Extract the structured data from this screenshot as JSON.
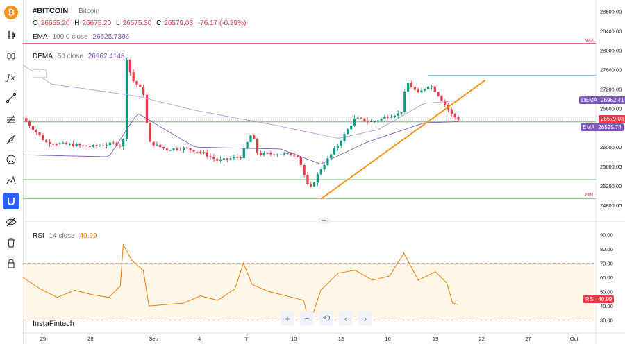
{
  "header": {
    "symbol": "#BITCOIN",
    "name": "Bitcoin",
    "o_label": "O",
    "o_value": "26655.20",
    "h_label": "H",
    "h_value": "26675.20",
    "l_label": "L",
    "l_value": "26575.30",
    "c_label": "C",
    "c_value": "26579.03",
    "change": "-76.17 (-0.29%)"
  },
  "indicators": {
    "ema": {
      "name": "EMA",
      "params": "100 0 close",
      "value": "26525.7396"
    },
    "dema": {
      "name": "DEMA",
      "params": "50 close",
      "value": "26962.4148"
    },
    "rsi": {
      "name": "RSI",
      "params": "14 close",
      "value": "40.99"
    }
  },
  "price_tags": {
    "dema": {
      "label": "DEMA",
      "value": "26962.41"
    },
    "last": {
      "value": "26579.03"
    },
    "ema": {
      "label": "EMA",
      "value": "26525.74"
    },
    "rsi": {
      "label": "RSI",
      "value": "40.99"
    }
  },
  "markers": {
    "max": "MAX",
    "min": "MIN"
  },
  "watermark": "InstaFintech",
  "icons": [
    "bitcoin-icon",
    "candles-icon",
    "bars-icon",
    "fx-icon",
    "line-tool-icon",
    "fib-icon",
    "brush-icon",
    "emoji-icon",
    "pattern-icon",
    "magnet-icon",
    "eye-icon",
    "trash-icon",
    "lock-icon"
  ],
  "nav_buttons": [
    "+",
    "−",
    "⟲",
    "‹",
    "›"
  ],
  "colors": {
    "up": "#089981",
    "down": "#f23645",
    "ema": "#7e57c2",
    "dema": "#b39ddb",
    "trend": "#f7931a",
    "rsi": "#f57c00",
    "hline_green": "#4caf50",
    "hline_red": "#f23645",
    "hline_blue": "#2196f3",
    "accent": "#2962ff"
  },
  "chart_data": [
    {
      "type": "candlestick",
      "x_ticks": [
        "25",
        "28",
        "Sep",
        "4",
        "7",
        "10",
        "13",
        "16",
        "19",
        "22",
        "27",
        "Oct"
      ],
      "y_ticks": [
        24800,
        25200,
        25600,
        26000,
        26400,
        26800,
        27200,
        27600,
        28000,
        28400,
        28800
      ],
      "ylim": [
        24600,
        28950
      ],
      "horizontal_levels": [
        28140,
        27480,
        26520,
        25330,
        24940
      ],
      "last_price": 26579.03,
      "max_price": 28140,
      "min_price": 24940,
      "trendline": [
        [
          24930,
          0
        ],
        [
          27380,
          1
        ]
      ],
      "close_path": [
        [
          0,
          26600
        ],
        [
          0.04,
          26100
        ],
        [
          0.08,
          26050
        ],
        [
          0.12,
          26010
        ],
        [
          0.16,
          26080
        ],
        [
          0.175,
          26000
        ],
        [
          0.18,
          27900
        ],
        [
          0.19,
          27400
        ],
        [
          0.21,
          27150
        ],
        [
          0.22,
          26100
        ],
        [
          0.25,
          25950
        ],
        [
          0.28,
          25980
        ],
        [
          0.31,
          25900
        ],
        [
          0.34,
          25720
        ],
        [
          0.38,
          25800
        ],
        [
          0.4,
          26300
        ],
        [
          0.41,
          25850
        ],
        [
          0.45,
          25860
        ],
        [
          0.48,
          25830
        ],
        [
          0.5,
          25100
        ],
        [
          0.52,
          25550
        ],
        [
          0.55,
          26050
        ],
        [
          0.58,
          26600
        ],
        [
          0.61,
          26520
        ],
        [
          0.64,
          26650
        ],
        [
          0.66,
          26700
        ],
        [
          0.67,
          27350
        ],
        [
          0.69,
          27100
        ],
        [
          0.71,
          27300
        ],
        [
          0.73,
          27000
        ],
        [
          0.75,
          26650
        ],
        [
          0.76,
          26579
        ]
      ],
      "ema_path": [
        [
          0,
          25840
        ],
        [
          0.15,
          25800
        ],
        [
          0.2,
          26700
        ],
        [
          0.3,
          26000
        ],
        [
          0.45,
          25960
        ],
        [
          0.52,
          25650
        ],
        [
          0.6,
          26100
        ],
        [
          0.7,
          26500
        ],
        [
          0.76,
          26526
        ]
      ],
      "dema_path": [
        [
          0,
          27700
        ],
        [
          0.05,
          27300
        ],
        [
          0.2,
          27050
        ],
        [
          0.3,
          26760
        ],
        [
          0.45,
          26430
        ],
        [
          0.55,
          26180
        ],
        [
          0.62,
          26360
        ],
        [
          0.7,
          26900
        ],
        [
          0.76,
          26962
        ]
      ]
    },
    {
      "type": "line",
      "name": "RSI",
      "y_ticks": [
        30,
        40,
        50,
        60,
        70,
        80,
        90
      ],
      "ylim": [
        25,
        95
      ],
      "bands": [
        30,
        70
      ],
      "last_value": 40.99,
      "values": [
        [
          0,
          60
        ],
        [
          0.03,
          52
        ],
        [
          0.06,
          46
        ],
        [
          0.09,
          51
        ],
        [
          0.12,
          48
        ],
        [
          0.15,
          46
        ],
        [
          0.17,
          54
        ],
        [
          0.175,
          83
        ],
        [
          0.19,
          72
        ],
        [
          0.21,
          65
        ],
        [
          0.22,
          40
        ],
        [
          0.25,
          41
        ],
        [
          0.28,
          42
        ],
        [
          0.31,
          47
        ],
        [
          0.34,
          44
        ],
        [
          0.37,
          52
        ],
        [
          0.385,
          70
        ],
        [
          0.4,
          55
        ],
        [
          0.43,
          50
        ],
        [
          0.46,
          47
        ],
        [
          0.49,
          44
        ],
        [
          0.5,
          27
        ],
        [
          0.52,
          51
        ],
        [
          0.55,
          63
        ],
        [
          0.58,
          65
        ],
        [
          0.61,
          58
        ],
        [
          0.64,
          61
        ],
        [
          0.665,
          77
        ],
        [
          0.69,
          58
        ],
        [
          0.72,
          64
        ],
        [
          0.74,
          56
        ],
        [
          0.75,
          42
        ],
        [
          0.76,
          41
        ]
      ]
    }
  ]
}
